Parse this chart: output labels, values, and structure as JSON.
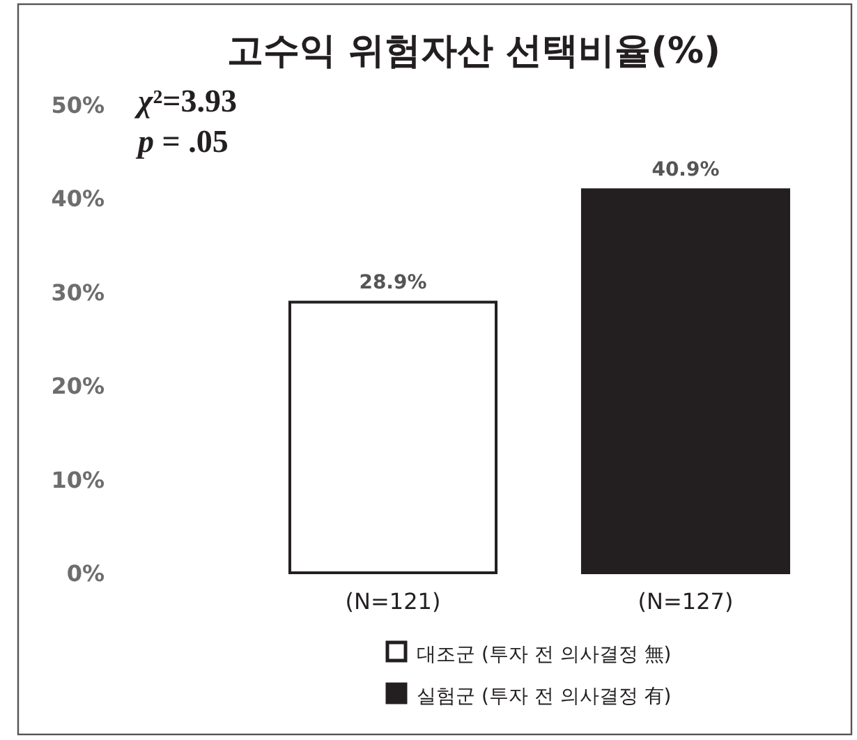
{
  "chart_data": {
    "type": "bar",
    "title": "고수익 위험자산 선택비율(%)",
    "categories": [
      "(N=121)",
      "(N=127)"
    ],
    "series": [
      {
        "name": "대조군 (투자 전 의사결정 無)",
        "color": "#ffffff",
        "values": [
          28.9,
          null
        ],
        "value_labels": [
          "28.9%",
          null
        ]
      },
      {
        "name": "실험군 (투자 전 의사결정 有)",
        "color": "#231f20",
        "values": [
          null,
          40.9
        ],
        "value_labels": [
          null,
          "40.9%"
        ]
      }
    ],
    "ylim": [
      0,
      50
    ],
    "yticks": [
      {
        "value": 0,
        "label": "0%"
      },
      {
        "value": 10,
        "label": "10%"
      },
      {
        "value": 20,
        "label": "20%"
      },
      {
        "value": 30,
        "label": "30%"
      },
      {
        "value": 40,
        "label": "40%"
      },
      {
        "value": 50,
        "label": "50%"
      }
    ],
    "annotations": [
      "χ²=3.93",
      "p = .05"
    ],
    "legend": "bottom",
    "grid": false
  }
}
